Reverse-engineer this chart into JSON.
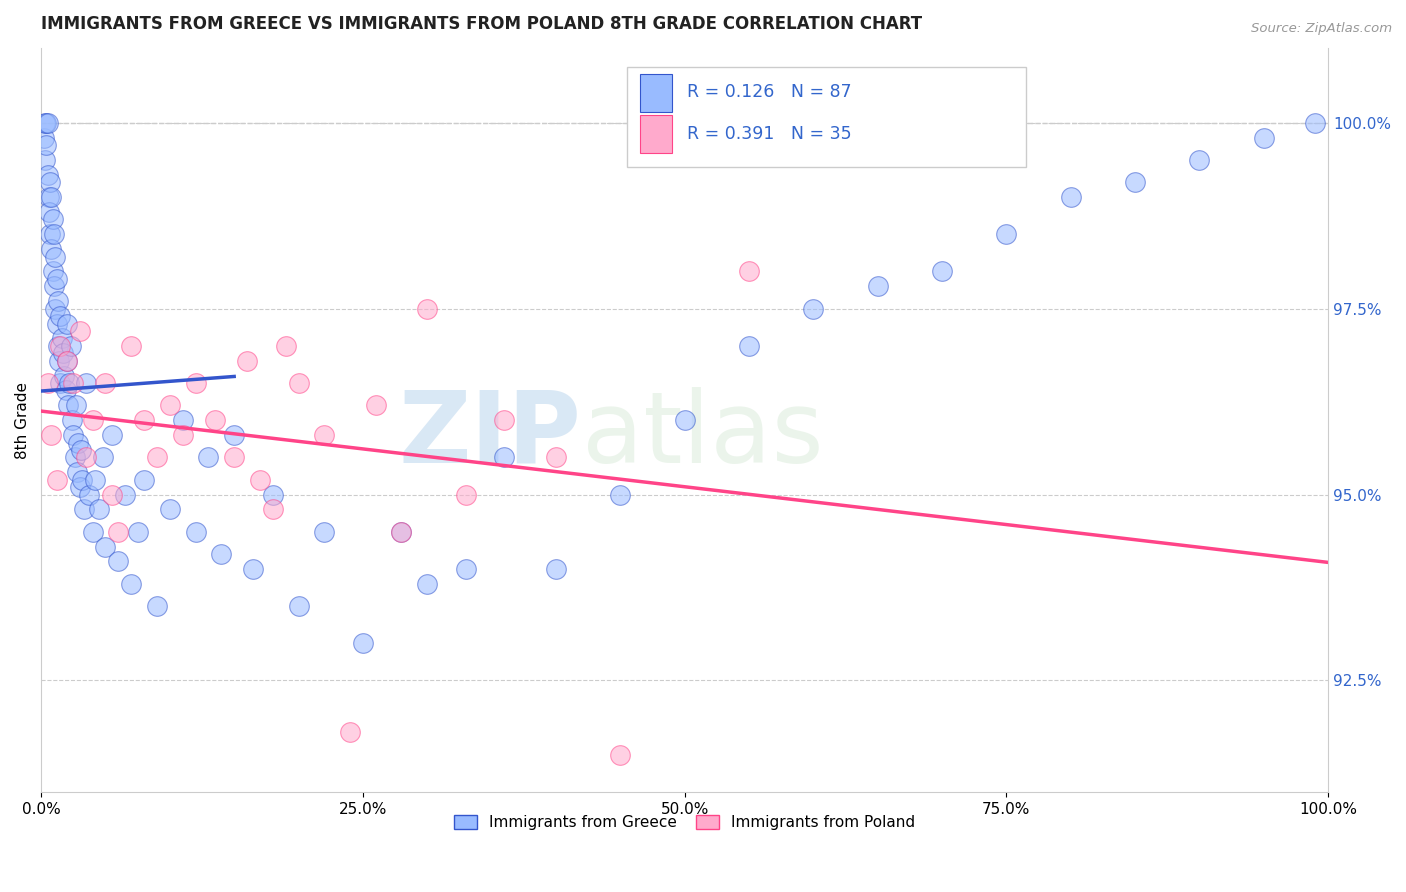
{
  "title": "IMMIGRANTS FROM GREECE VS IMMIGRANTS FROM POLAND 8TH GRADE CORRELATION CHART",
  "source": "Source: ZipAtlas.com",
  "ylabel_left": "8th Grade",
  "legend_label1": "Immigrants from Greece",
  "legend_label2": "Immigrants from Poland",
  "r1": 0.126,
  "n1": 87,
  "r2": 0.391,
  "n2": 35,
  "color_greece": "#99BBFF",
  "color_poland": "#FFAACC",
  "line_color_greece": "#3355CC",
  "line_color_poland": "#FF4488",
  "xlim": [
    0.0,
    100.0
  ],
  "ylim": [
    91.0,
    101.0
  ],
  "yticks_right": [
    92.5,
    95.0,
    97.5,
    100.0
  ],
  "xticks": [
    0.0,
    25.0,
    50.0,
    75.0,
    100.0
  ],
  "watermark_zip": "ZIP",
  "watermark_atlas": "atlas",
  "greece_x": [
    0.2,
    0.3,
    0.3,
    0.4,
    0.4,
    0.5,
    0.5,
    0.6,
    0.6,
    0.7,
    0.7,
    0.8,
    0.8,
    0.9,
    0.9,
    1.0,
    1.0,
    1.1,
    1.1,
    1.2,
    1.2,
    1.3,
    1.3,
    1.4,
    1.5,
    1.5,
    1.6,
    1.7,
    1.8,
    1.9,
    2.0,
    2.0,
    2.1,
    2.2,
    2.3,
    2.4,
    2.5,
    2.6,
    2.7,
    2.8,
    2.9,
    3.0,
    3.1,
    3.2,
    3.3,
    3.5,
    3.7,
    4.0,
    4.2,
    4.5,
    4.8,
    5.0,
    5.5,
    6.0,
    6.5,
    7.0,
    7.5,
    8.0,
    9.0,
    10.0,
    11.0,
    12.0,
    13.0,
    14.0,
    15.0,
    16.5,
    18.0,
    20.0,
    22.0,
    25.0,
    28.0,
    30.0,
    33.0,
    36.0,
    40.0,
    45.0,
    50.0,
    55.0,
    60.0,
    65.0,
    70.0,
    75.0,
    80.0,
    85.0,
    90.0,
    95.0,
    99.0
  ],
  "greece_y": [
    99.8,
    100.0,
    99.5,
    99.7,
    100.0,
    99.3,
    100.0,
    99.0,
    98.8,
    98.5,
    99.2,
    98.3,
    99.0,
    98.0,
    98.7,
    97.8,
    98.5,
    97.5,
    98.2,
    97.3,
    97.9,
    97.0,
    97.6,
    96.8,
    97.4,
    96.5,
    97.1,
    96.9,
    96.6,
    96.4,
    96.8,
    97.3,
    96.2,
    96.5,
    97.0,
    96.0,
    95.8,
    95.5,
    96.2,
    95.3,
    95.7,
    95.1,
    95.6,
    95.2,
    94.8,
    96.5,
    95.0,
    94.5,
    95.2,
    94.8,
    95.5,
    94.3,
    95.8,
    94.1,
    95.0,
    93.8,
    94.5,
    95.2,
    93.5,
    94.8,
    96.0,
    94.5,
    95.5,
    94.2,
    95.8,
    94.0,
    95.0,
    93.5,
    94.5,
    93.0,
    94.5,
    93.8,
    94.0,
    95.5,
    94.0,
    95.0,
    96.0,
    97.0,
    97.5,
    97.8,
    98.0,
    98.5,
    99.0,
    99.2,
    99.5,
    99.8,
    100.0
  ],
  "poland_x": [
    0.5,
    0.8,
    1.2,
    1.5,
    2.0,
    2.5,
    3.0,
    3.5,
    4.0,
    5.0,
    5.5,
    6.0,
    7.0,
    8.0,
    9.0,
    10.0,
    11.0,
    12.0,
    13.5,
    15.0,
    16.0,
    17.0,
    18.0,
    19.0,
    20.0,
    22.0,
    24.0,
    26.0,
    28.0,
    30.0,
    33.0,
    36.0,
    40.0,
    45.0,
    55.0
  ],
  "poland_y": [
    96.5,
    95.8,
    95.2,
    97.0,
    96.8,
    96.5,
    97.2,
    95.5,
    96.0,
    96.5,
    95.0,
    94.5,
    97.0,
    96.0,
    95.5,
    96.2,
    95.8,
    96.5,
    96.0,
    95.5,
    96.8,
    95.2,
    94.8,
    97.0,
    96.5,
    95.8,
    91.8,
    96.2,
    94.5,
    97.5,
    95.0,
    96.0,
    95.5,
    91.5,
    98.0
  ],
  "ref_line_x": [
    0,
    100
  ],
  "ref_line_y": [
    100,
    100
  ]
}
